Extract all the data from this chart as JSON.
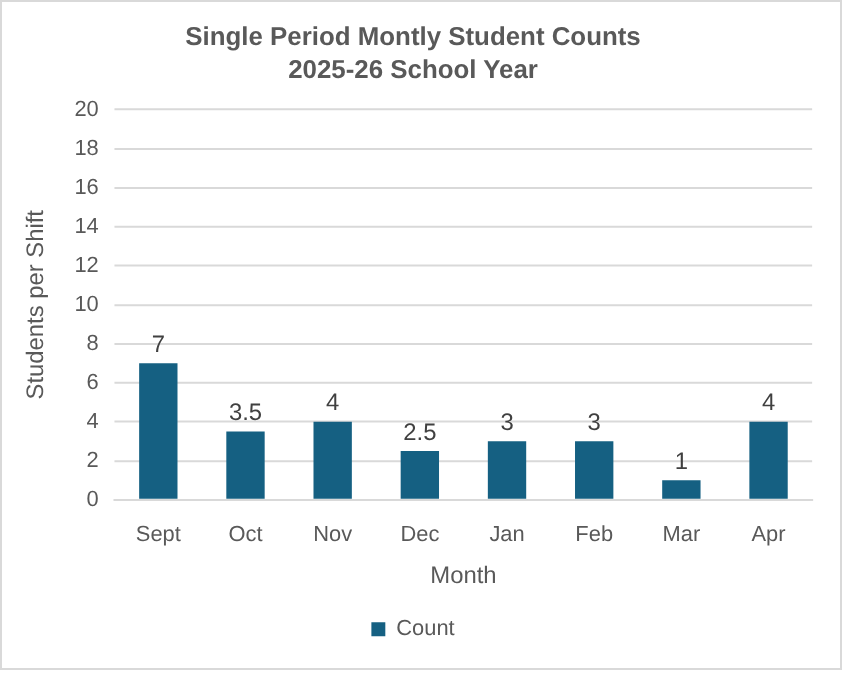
{
  "chart_data": {
    "type": "bar",
    "title": "Single Period Montly Student Counts",
    "subtitle": "2025-26 School Year",
    "xlabel": "Month",
    "ylabel": "Students per Shift",
    "categories": [
      "Sept",
      "Oct",
      "Nov",
      "Dec",
      "Jan",
      "Feb",
      "Mar",
      "Apr"
    ],
    "series": [
      {
        "name": "Count",
        "color": "#156082",
        "values": [
          7,
          3.5,
          4,
          2.5,
          3,
          3,
          1,
          4
        ]
      }
    ],
    "ylim": [
      0,
      20
    ],
    "yticks": [
      0,
      2,
      4,
      6,
      8,
      10,
      12,
      14,
      16,
      18,
      20
    ],
    "grid": "y",
    "legend": "bottom",
    "data_labels": true
  }
}
